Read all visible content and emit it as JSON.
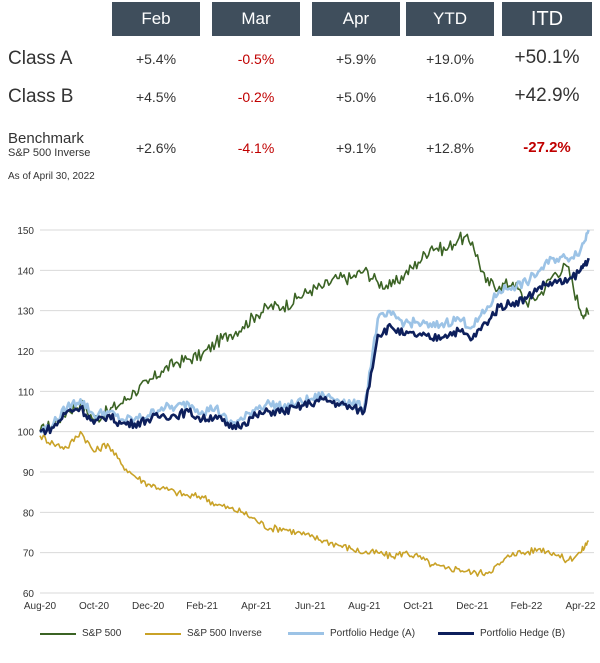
{
  "table": {
    "headers": [
      "Feb",
      "Mar",
      "Apr",
      "YTD",
      "ITD"
    ],
    "rows": [
      {
        "label": "Class A",
        "values": [
          "+5.4%",
          "-0.5%",
          "+5.9%",
          "+19.0%",
          "+50.1%"
        ]
      },
      {
        "label": "Class B",
        "values": [
          "+4.5%",
          "-0.2%",
          "+5.0%",
          "+16.0%",
          "+42.9%"
        ]
      }
    ],
    "benchmark": {
      "label": "Benchmark",
      "sublabel": "S&P 500 Inverse",
      "values": [
        "+2.6%",
        "-4.1%",
        "+9.1%",
        "+12.8%",
        "-27.2%"
      ]
    },
    "as_of": "As of April 30, 2022",
    "colors": {
      "header_bg": "#3f4e5c",
      "negative": "#c00000"
    }
  },
  "chart_data": {
    "type": "line",
    "xlabel": "",
    "ylabel": "",
    "ylim": [
      60,
      150
    ],
    "yticks": [
      60,
      70,
      80,
      90,
      100,
      110,
      120,
      130,
      140,
      150
    ],
    "xticks": [
      "Aug-20",
      "Oct-20",
      "Dec-20",
      "Feb-21",
      "Apr-21",
      "Jun-21",
      "Aug-21",
      "Oct-21",
      "Dec-21",
      "Feb-22",
      "Apr-22"
    ],
    "grid": "horizontal",
    "legend_position": "bottom",
    "x_range_months": [
      0,
      20.5
    ],
    "series": [
      {
        "name": "S&P 500",
        "color": "#3b6324",
        "points": [
          [
            0,
            100
          ],
          [
            0.5,
            102
          ],
          [
            1,
            105
          ],
          [
            1.5,
            107
          ],
          [
            2,
            103
          ],
          [
            2.5,
            105
          ],
          [
            3,
            107
          ],
          [
            3.5,
            110
          ],
          [
            4,
            112
          ],
          [
            4.5,
            115
          ],
          [
            5,
            117
          ],
          [
            5.5,
            118
          ],
          [
            6,
            119
          ],
          [
            6.5,
            122
          ],
          [
            7,
            124
          ],
          [
            7.5,
            126
          ],
          [
            8,
            129
          ],
          [
            8.5,
            131
          ],
          [
            9,
            131
          ],
          [
            9.5,
            133
          ],
          [
            10,
            135
          ],
          [
            10.5,
            136
          ],
          [
            11,
            138
          ],
          [
            11.5,
            138
          ],
          [
            12,
            140
          ],
          [
            12.5,
            137
          ],
          [
            13,
            136
          ],
          [
            13.5,
            139
          ],
          [
            14,
            142
          ],
          [
            14.5,
            146
          ],
          [
            15,
            145
          ],
          [
            15.5,
            148
          ],
          [
            16,
            147
          ],
          [
            16.5,
            137
          ],
          [
            17,
            136
          ],
          [
            17.5,
            137
          ],
          [
            18,
            132
          ],
          [
            18.5,
            134
          ],
          [
            19,
            139
          ],
          [
            19.5,
            141
          ],
          [
            20,
            130
          ],
          [
            20.3,
            129
          ]
        ]
      },
      {
        "name": "S&P 500 Inverse",
        "color": "#c9a227",
        "points": [
          [
            0,
            99
          ],
          [
            0.5,
            97
          ],
          [
            1,
            96
          ],
          [
            1.5,
            100
          ],
          [
            2,
            95
          ],
          [
            2.5,
            97
          ],
          [
            3,
            92
          ],
          [
            3.5,
            89
          ],
          [
            4,
            87
          ],
          [
            4.5,
            86
          ],
          [
            5,
            85
          ],
          [
            5.5,
            84
          ],
          [
            6,
            84
          ],
          [
            6.5,
            82
          ],
          [
            7,
            81
          ],
          [
            7.5,
            80
          ],
          [
            8,
            78
          ],
          [
            8.5,
            76
          ],
          [
            9,
            76
          ],
          [
            9.5,
            75
          ],
          [
            10,
            74
          ],
          [
            10.5,
            73
          ],
          [
            11,
            72
          ],
          [
            11.5,
            71
          ],
          [
            12,
            70
          ],
          [
            12.5,
            70
          ],
          [
            13,
            69
          ],
          [
            13.5,
            70
          ],
          [
            14,
            69
          ],
          [
            14.5,
            67
          ],
          [
            15,
            66
          ],
          [
            15.5,
            66
          ],
          [
            16,
            65
          ],
          [
            16.5,
            65
          ],
          [
            17,
            67
          ],
          [
            17.5,
            70
          ],
          [
            18,
            70
          ],
          [
            18.5,
            71
          ],
          [
            19,
            70
          ],
          [
            19.5,
            68
          ],
          [
            20,
            70
          ],
          [
            20.3,
            73
          ]
        ]
      },
      {
        "name": "Portfolio Hedge (A)",
        "color": "#9cc3e6",
        "points": [
          [
            0,
            100
          ],
          [
            0.5,
            102
          ],
          [
            1,
            106
          ],
          [
            1.5,
            108
          ],
          [
            2,
            104
          ],
          [
            2.5,
            105
          ],
          [
            3,
            103
          ],
          [
            3.5,
            103
          ],
          [
            4,
            104
          ],
          [
            4.5,
            106
          ],
          [
            5,
            106
          ],
          [
            5.5,
            107
          ],
          [
            6,
            105
          ],
          [
            6.5,
            106
          ],
          [
            7,
            102
          ],
          [
            7.5,
            103
          ],
          [
            8,
            106
          ],
          [
            8.5,
            107
          ],
          [
            9,
            106
          ],
          [
            9.5,
            107
          ],
          [
            10,
            108
          ],
          [
            10.5,
            109
          ],
          [
            11,
            108
          ],
          [
            11.5,
            107
          ],
          [
            12,
            106
          ],
          [
            12.5,
            128
          ],
          [
            13,
            129
          ],
          [
            13.5,
            127
          ],
          [
            14,
            127
          ],
          [
            14.5,
            126
          ],
          [
            15,
            127
          ],
          [
            15.5,
            128
          ],
          [
            16,
            126
          ],
          [
            16.5,
            130
          ],
          [
            17,
            135
          ],
          [
            17.5,
            136
          ],
          [
            18,
            137
          ],
          [
            18.5,
            140
          ],
          [
            19,
            143
          ],
          [
            19.5,
            143
          ],
          [
            20,
            145
          ],
          [
            20.3,
            150
          ]
        ]
      },
      {
        "name": "Portfolio Hedge (B)",
        "color": "#0d1f5c",
        "points": [
          [
            0,
            100
          ],
          [
            0.5,
            101
          ],
          [
            1,
            105
          ],
          [
            1.5,
            106
          ],
          [
            2,
            102
          ],
          [
            2.5,
            104
          ],
          [
            3,
            102
          ],
          [
            3.5,
            102
          ],
          [
            4,
            103
          ],
          [
            4.5,
            104
          ],
          [
            5,
            104
          ],
          [
            5.5,
            105
          ],
          [
            6,
            103
          ],
          [
            6.5,
            104
          ],
          [
            7,
            101
          ],
          [
            7.5,
            102
          ],
          [
            8,
            104
          ],
          [
            8.5,
            105
          ],
          [
            9,
            105
          ],
          [
            9.5,
            106
          ],
          [
            10,
            107
          ],
          [
            10.5,
            108
          ],
          [
            11,
            107
          ],
          [
            11.5,
            106
          ],
          [
            12,
            105
          ],
          [
            12.5,
            124
          ],
          [
            13,
            126
          ],
          [
            13.5,
            124
          ],
          [
            14,
            124
          ],
          [
            14.5,
            123
          ],
          [
            15,
            124
          ],
          [
            15.5,
            125
          ],
          [
            16,
            123
          ],
          [
            16.5,
            127
          ],
          [
            17,
            131
          ],
          [
            17.5,
            132
          ],
          [
            18,
            133
          ],
          [
            18.5,
            136
          ],
          [
            19,
            137
          ],
          [
            19.5,
            137
          ],
          [
            20,
            140
          ],
          [
            20.3,
            143
          ]
        ]
      }
    ]
  }
}
